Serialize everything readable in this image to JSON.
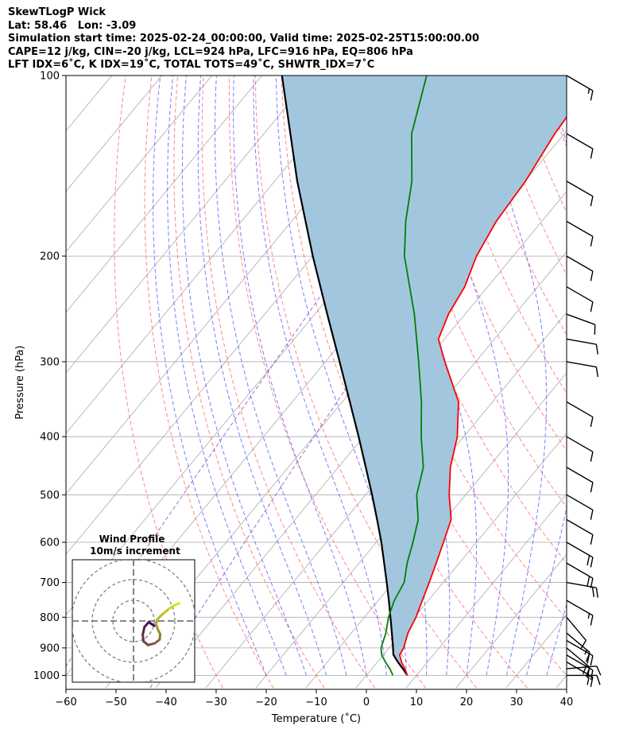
{
  "title_lines": [
    "SkewTLogP Wick",
    "Lat: 58.46   Lon: -3.09",
    "Simulation start time: 2025-02-24_00:00:00, Valid time: 2025-02-25T15:00:00.00",
    "CAPE=12 j/kg, CIN=-20 j/kg, LCL=924 hPa, LFC=916 hPa, EQ=806 hPa",
    "LFT IDX=6˚C, K IDX=19˚C, TOTAL TOTS=49˚C, SHWTR_IDX=7˚C"
  ],
  "chart_data": {
    "type": "skewt",
    "xlabel": "Temperature (˚C)",
    "ylabel": "Pressure (hPa)",
    "xlim": [
      -60,
      40
    ],
    "ylim": [
      1050,
      100
    ],
    "y_scale": "log",
    "x_ticks": [
      -60,
      -50,
      -40,
      -30,
      -20,
      -10,
      0,
      10,
      20,
      30,
      40
    ],
    "x_tick_labels": [
      "−60",
      "−50",
      "−40",
      "−30",
      "−20",
      "−10",
      "0",
      "10",
      "20",
      "30",
      "40"
    ],
    "y_ticks": [
      1000,
      900,
      800,
      700,
      600,
      500,
      400,
      300,
      200,
      100
    ],
    "grid": true,
    "colors": {
      "temperature": "#ff0000",
      "dewpoint": "#008000",
      "parcel": "#000000",
      "cape_fill": "#a3c6df",
      "dry_adiabats": "#ff6060",
      "moist_adiabats": "#5050ff",
      "mixing_ratio": "#8844cc",
      "isotherms": "#aaaaaa"
    },
    "series": [
      {
        "role": "temperature",
        "points": [
          [
            1000,
            8.2
          ],
          [
            975,
            6.6
          ],
          [
            950,
            4.8
          ],
          [
            925,
            3.3
          ],
          [
            900,
            2.9
          ],
          [
            850,
            1.3
          ],
          [
            800,
            0.3
          ],
          [
            750,
            -1.2
          ],
          [
            700,
            -2.8
          ],
          [
            650,
            -4.6
          ],
          [
            600,
            -6.6
          ],
          [
            550,
            -8.8
          ],
          [
            500,
            -13.3
          ],
          [
            450,
            -17.6
          ],
          [
            400,
            -21.3
          ],
          [
            350,
            -26.8
          ],
          [
            300,
            -36.2
          ],
          [
            275,
            -41.2
          ],
          [
            250,
            -43.3
          ],
          [
            225,
            -44.6
          ],
          [
            200,
            -47.3
          ],
          [
            175,
            -49.1
          ],
          [
            150,
            -49.9
          ],
          [
            125,
            -51.9
          ],
          [
            100,
            -53.2
          ]
        ]
      },
      {
        "role": "dewpoint",
        "points": [
          [
            1000,
            5.3
          ],
          [
            975,
            3.6
          ],
          [
            950,
            1.6
          ],
          [
            925,
            -0.3
          ],
          [
            900,
            -1.6
          ],
          [
            850,
            -3.1
          ],
          [
            800,
            -5.2
          ],
          [
            750,
            -6.8
          ],
          [
            700,
            -7.8
          ],
          [
            650,
            -10.4
          ],
          [
            600,
            -12.7
          ],
          [
            550,
            -15.4
          ],
          [
            500,
            -19.8
          ],
          [
            450,
            -23.0
          ],
          [
            400,
            -28.5
          ],
          [
            350,
            -34.2
          ],
          [
            300,
            -41.4
          ],
          [
            250,
            -50.1
          ],
          [
            200,
            -61.7
          ],
          [
            175,
            -67.2
          ],
          [
            150,
            -72.6
          ],
          [
            125,
            -80.5
          ],
          [
            100,
            -87.1
          ]
        ]
      },
      {
        "role": "parcel",
        "points": [
          [
            1000,
            8.2
          ],
          [
            975,
            6.2
          ],
          [
            950,
            4.1
          ],
          [
            924,
            2.0
          ],
          [
            900,
            0.8
          ],
          [
            850,
            -1.9
          ],
          [
            800,
            -4.8
          ],
          [
            750,
            -7.9
          ],
          [
            700,
            -11.3
          ],
          [
            650,
            -15.0
          ],
          [
            600,
            -19.0
          ],
          [
            550,
            -23.6
          ],
          [
            500,
            -28.7
          ],
          [
            450,
            -34.5
          ],
          [
            400,
            -41.0
          ],
          [
            350,
            -48.5
          ],
          [
            300,
            -57.2
          ],
          [
            250,
            -67.5
          ],
          [
            200,
            -80.0
          ],
          [
            150,
            -95.5
          ],
          [
            100,
            -116.0
          ]
        ]
      }
    ],
    "wind_barbs": {
      "pressure": [
        1000,
        975,
        950,
        925,
        900,
        875,
        850,
        800,
        750,
        700,
        650,
        600,
        550,
        500,
        450,
        400,
        350,
        300,
        275,
        250,
        225,
        200,
        175,
        150,
        125,
        100
      ],
      "speed_kt": [
        10,
        10,
        20,
        20,
        20,
        20,
        15,
        10,
        15,
        20,
        20,
        20,
        10,
        10,
        10,
        10,
        10,
        10,
        10,
        10,
        10,
        10,
        10,
        10,
        10,
        15
      ],
      "direction_deg": [
        270,
        265,
        300,
        300,
        310,
        300,
        310,
        320,
        300,
        280,
        300,
        300,
        300,
        300,
        300,
        300,
        300,
        280,
        280,
        290,
        300,
        300,
        300,
        300,
        300,
        300
      ]
    },
    "inset": {
      "title_lines": [
        "Wind Profile",
        "10m/s increment"
      ],
      "hodograph": [
        [
          0,
          0
        ],
        [
          -1.8,
          1.2
        ],
        [
          -3.2,
          -0.4
        ],
        [
          -3.8,
          -3.0
        ],
        [
          -3.5,
          -5.2
        ],
        [
          -2.0,
          -6.4
        ],
        [
          0.2,
          -5.8
        ],
        [
          1.8,
          -4.6
        ],
        [
          2.0,
          -2.8
        ],
        [
          1.2,
          -1.2
        ],
        [
          0.6,
          0.6
        ],
        [
          1.0,
          2.0
        ],
        [
          2.5,
          3.6
        ],
        [
          4.8,
          5.5
        ],
        [
          6.8,
          6.8
        ],
        [
          8.2,
          7.4
        ]
      ]
    }
  }
}
